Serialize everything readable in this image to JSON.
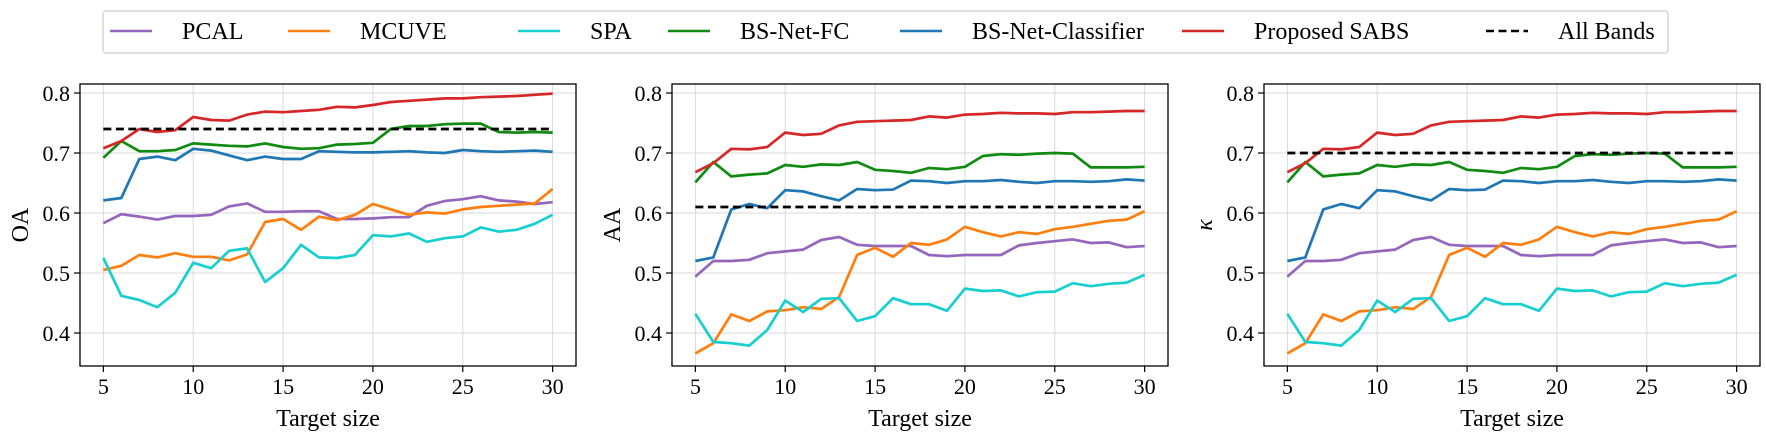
{
  "legend": {
    "placement": "top-center",
    "entries": [
      {
        "name": "PCAL",
        "color": "#9467bd",
        "style": "solid"
      },
      {
        "name": "MCUVE",
        "color": "#ff7f0e",
        "style": "solid"
      },
      {
        "name": "SPA",
        "color": "#17cfd0",
        "style": "solid"
      },
      {
        "name": "BS-Net-FC",
        "color": "#108a10",
        "style": "solid"
      },
      {
        "name": "BS-Net-Classifier",
        "color": "#1f77b4",
        "style": "solid"
      },
      {
        "name": "Proposed SABS",
        "color": "#d62728",
        "style": "solid"
      },
      {
        "name": "All Bands",
        "color": "#000000",
        "style": "dashed"
      }
    ]
  },
  "chart_data": [
    {
      "type": "line",
      "xlabel": "Target size",
      "ylabel": "OA",
      "xlim": [
        3.7,
        31.3
      ],
      "ylim": [
        0.345,
        0.815
      ],
      "xticks": [
        5,
        10,
        15,
        20,
        25,
        30
      ],
      "yticks": [
        0.4,
        0.5,
        0.6,
        0.7,
        0.8
      ],
      "grid": true,
      "x": [
        5,
        6,
        7,
        8,
        9,
        10,
        11,
        12,
        13,
        14,
        15,
        16,
        17,
        18,
        19,
        20,
        21,
        22,
        23,
        24,
        25,
        26,
        27,
        28,
        29,
        30
      ],
      "series": [
        {
          "name": "PCAL",
          "values": [
            0.583,
            0.598,
            0.594,
            0.589,
            0.595,
            0.595,
            0.597,
            0.611,
            0.616,
            0.602,
            0.602,
            0.603,
            0.603,
            0.59,
            0.59,
            0.591,
            0.593,
            0.593,
            0.612,
            0.62,
            0.623,
            0.628,
            0.621,
            0.619,
            0.615,
            0.618
          ]
        },
        {
          "name": "MCUVE",
          "values": [
            0.505,
            0.512,
            0.53,
            0.526,
            0.533,
            0.527,
            0.527,
            0.521,
            0.531,
            0.585,
            0.59,
            0.572,
            0.594,
            0.588,
            0.597,
            0.615,
            0.606,
            0.597,
            0.601,
            0.599,
            0.606,
            0.61,
            0.612,
            0.614,
            0.616,
            0.64
          ]
        },
        {
          "name": "SPA",
          "values": [
            0.525,
            0.462,
            0.455,
            0.443,
            0.467,
            0.517,
            0.508,
            0.537,
            0.541,
            0.485,
            0.508,
            0.547,
            0.526,
            0.525,
            0.53,
            0.563,
            0.561,
            0.566,
            0.552,
            0.558,
            0.561,
            0.576,
            0.569,
            0.572,
            0.582,
            0.597
          ]
        },
        {
          "name": "BS-Net-FC",
          "values": [
            0.692,
            0.72,
            0.703,
            0.703,
            0.705,
            0.716,
            0.714,
            0.712,
            0.711,
            0.716,
            0.71,
            0.707,
            0.708,
            0.714,
            0.715,
            0.717,
            0.74,
            0.745,
            0.745,
            0.748,
            0.749,
            0.749,
            0.735,
            0.734,
            0.735,
            0.734
          ]
        },
        {
          "name": "BS-Net-Classifier",
          "values": [
            0.621,
            0.625,
            0.69,
            0.694,
            0.688,
            0.707,
            0.704,
            0.696,
            0.688,
            0.694,
            0.69,
            0.69,
            0.703,
            0.702,
            0.701,
            0.701,
            0.702,
            0.703,
            0.701,
            0.7,
            0.705,
            0.703,
            0.702,
            0.703,
            0.704,
            0.702
          ]
        },
        {
          "name": "Proposed SABS",
          "values": [
            0.708,
            0.72,
            0.74,
            0.735,
            0.738,
            0.76,
            0.755,
            0.754,
            0.764,
            0.769,
            0.768,
            0.77,
            0.772,
            0.777,
            0.776,
            0.78,
            0.785,
            0.787,
            0.789,
            0.791,
            0.791,
            0.793,
            0.794,
            0.795,
            0.797,
            0.799
          ]
        },
        {
          "name": "All Bands",
          "values": [
            0.74,
            0.74,
            0.74,
            0.74,
            0.74,
            0.74,
            0.74,
            0.74,
            0.74,
            0.74,
            0.74,
            0.74,
            0.74,
            0.74,
            0.74,
            0.74,
            0.74,
            0.74,
            0.74,
            0.74,
            0.74,
            0.74,
            0.74,
            0.74,
            0.74,
            0.74
          ]
        }
      ]
    },
    {
      "type": "line",
      "xlabel": "Target size",
      "ylabel": "AA",
      "xlim": [
        3.7,
        31.3
      ],
      "ylim": [
        0.345,
        0.815
      ],
      "xticks": [
        5,
        10,
        15,
        20,
        25,
        30
      ],
      "yticks": [
        0.4,
        0.5,
        0.6,
        0.7,
        0.8
      ],
      "grid": true,
      "x": [
        5,
        6,
        7,
        8,
        9,
        10,
        11,
        12,
        13,
        14,
        15,
        16,
        17,
        18,
        19,
        20,
        21,
        22,
        23,
        24,
        25,
        26,
        27,
        28,
        29,
        30
      ],
      "series": [
        {
          "name": "PCAL",
          "values": [
            0.494,
            0.52,
            0.52,
            0.522,
            0.533,
            0.536,
            0.539,
            0.555,
            0.56,
            0.547,
            0.545,
            0.545,
            0.545,
            0.53,
            0.528,
            0.53,
            0.53,
            0.53,
            0.546,
            0.55,
            0.553,
            0.556,
            0.55,
            0.551,
            0.543,
            0.545
          ]
        },
        {
          "name": "MCUVE",
          "values": [
            0.366,
            0.383,
            0.431,
            0.42,
            0.436,
            0.438,
            0.443,
            0.44,
            0.46,
            0.53,
            0.542,
            0.527,
            0.55,
            0.547,
            0.556,
            0.577,
            0.568,
            0.561,
            0.568,
            0.565,
            0.573,
            0.577,
            0.582,
            0.587,
            0.589,
            0.603
          ]
        },
        {
          "name": "SPA",
          "values": [
            0.432,
            0.385,
            0.383,
            0.379,
            0.405,
            0.454,
            0.435,
            0.457,
            0.458,
            0.42,
            0.428,
            0.458,
            0.448,
            0.448,
            0.437,
            0.474,
            0.47,
            0.471,
            0.461,
            0.468,
            0.469,
            0.483,
            0.478,
            0.482,
            0.484,
            0.497
          ]
        },
        {
          "name": "BS-Net-FC",
          "values": [
            0.651,
            0.685,
            0.661,
            0.664,
            0.666,
            0.68,
            0.677,
            0.681,
            0.68,
            0.685,
            0.672,
            0.67,
            0.667,
            0.675,
            0.673,
            0.677,
            0.695,
            0.698,
            0.697,
            0.699,
            0.7,
            0.699,
            0.676,
            0.676,
            0.676,
            0.677
          ]
        },
        {
          "name": "BS-Net-Classifier",
          "values": [
            0.52,
            0.526,
            0.606,
            0.615,
            0.608,
            0.638,
            0.636,
            0.628,
            0.621,
            0.64,
            0.638,
            0.639,
            0.654,
            0.653,
            0.65,
            0.653,
            0.653,
            0.655,
            0.652,
            0.65,
            0.653,
            0.653,
            0.652,
            0.653,
            0.656,
            0.654
          ]
        },
        {
          "name": "Proposed SABS",
          "values": [
            0.668,
            0.683,
            0.707,
            0.706,
            0.71,
            0.734,
            0.73,
            0.732,
            0.746,
            0.752,
            0.753,
            0.754,
            0.755,
            0.761,
            0.759,
            0.764,
            0.765,
            0.767,
            0.766,
            0.766,
            0.765,
            0.768,
            0.768,
            0.769,
            0.77,
            0.77
          ]
        },
        {
          "name": "All Bands",
          "values": [
            0.61,
            0.61,
            0.61,
            0.61,
            0.61,
            0.61,
            0.61,
            0.61,
            0.61,
            0.61,
            0.61,
            0.61,
            0.61,
            0.61,
            0.61,
            0.61,
            0.61,
            0.61,
            0.61,
            0.61,
            0.61,
            0.61,
            0.61,
            0.61,
            0.61,
            0.61
          ]
        }
      ]
    },
    {
      "type": "line",
      "xlabel": "Target size",
      "ylabel": "κ",
      "xlim": [
        3.7,
        31.3
      ],
      "ylim": [
        0.345,
        0.815
      ],
      "xticks": [
        5,
        10,
        15,
        20,
        25,
        30
      ],
      "yticks": [
        0.4,
        0.5,
        0.6,
        0.7,
        0.8
      ],
      "grid": true,
      "x": [
        5,
        6,
        7,
        8,
        9,
        10,
        11,
        12,
        13,
        14,
        15,
        16,
        17,
        18,
        19,
        20,
        21,
        22,
        23,
        24,
        25,
        26,
        27,
        28,
        29,
        30
      ],
      "series": [
        {
          "name": "PCAL",
          "values": [
            0.494,
            0.52,
            0.52,
            0.522,
            0.533,
            0.536,
            0.539,
            0.555,
            0.56,
            0.547,
            0.545,
            0.545,
            0.545,
            0.53,
            0.528,
            0.53,
            0.53,
            0.53,
            0.546,
            0.55,
            0.553,
            0.556,
            0.55,
            0.551,
            0.543,
            0.545
          ]
        },
        {
          "name": "MCUVE",
          "values": [
            0.366,
            0.383,
            0.431,
            0.42,
            0.436,
            0.438,
            0.443,
            0.44,
            0.46,
            0.53,
            0.542,
            0.527,
            0.55,
            0.547,
            0.556,
            0.577,
            0.568,
            0.561,
            0.568,
            0.565,
            0.573,
            0.577,
            0.582,
            0.587,
            0.589,
            0.603
          ]
        },
        {
          "name": "SPA",
          "values": [
            0.432,
            0.385,
            0.383,
            0.379,
            0.405,
            0.454,
            0.435,
            0.457,
            0.458,
            0.42,
            0.428,
            0.458,
            0.448,
            0.448,
            0.437,
            0.474,
            0.47,
            0.471,
            0.461,
            0.468,
            0.469,
            0.483,
            0.478,
            0.482,
            0.484,
            0.497
          ]
        },
        {
          "name": "BS-Net-FC",
          "values": [
            0.651,
            0.685,
            0.661,
            0.664,
            0.666,
            0.68,
            0.677,
            0.681,
            0.68,
            0.685,
            0.672,
            0.67,
            0.667,
            0.675,
            0.673,
            0.677,
            0.695,
            0.698,
            0.697,
            0.699,
            0.7,
            0.699,
            0.676,
            0.676,
            0.676,
            0.677
          ]
        },
        {
          "name": "BS-Net-Classifier",
          "values": [
            0.52,
            0.526,
            0.606,
            0.615,
            0.608,
            0.638,
            0.636,
            0.628,
            0.621,
            0.64,
            0.638,
            0.639,
            0.654,
            0.653,
            0.65,
            0.653,
            0.653,
            0.655,
            0.652,
            0.65,
            0.653,
            0.653,
            0.652,
            0.653,
            0.656,
            0.654
          ]
        },
        {
          "name": "Proposed SABS",
          "values": [
            0.668,
            0.683,
            0.707,
            0.706,
            0.71,
            0.734,
            0.73,
            0.732,
            0.746,
            0.752,
            0.753,
            0.754,
            0.755,
            0.761,
            0.759,
            0.764,
            0.765,
            0.767,
            0.766,
            0.766,
            0.765,
            0.768,
            0.768,
            0.769,
            0.77,
            0.77
          ]
        },
        {
          "name": "All Bands",
          "values": [
            0.7,
            0.7,
            0.7,
            0.7,
            0.7,
            0.7,
            0.7,
            0.7,
            0.7,
            0.7,
            0.7,
            0.7,
            0.7,
            0.7,
            0.7,
            0.7,
            0.7,
            0.7,
            0.7,
            0.7,
            0.7,
            0.7,
            0.7,
            0.7,
            0.7,
            0.7
          ]
        }
      ]
    }
  ]
}
